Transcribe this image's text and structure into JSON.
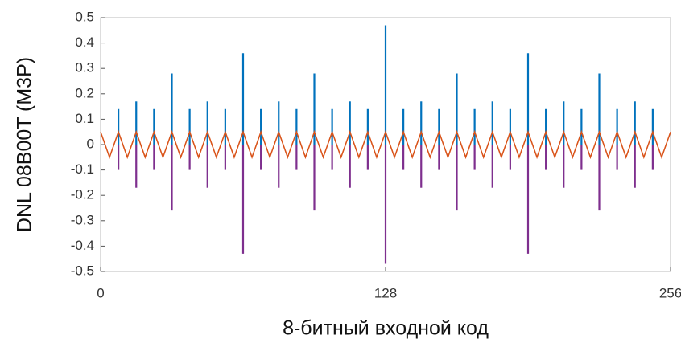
{
  "chart_data": {
    "type": "stem",
    "xlabel": "8-битный входной код",
    "ylabel": "DNL 08B00T (M3P)",
    "xlim": [
      0,
      256
    ],
    "xticks": [
      0,
      128,
      256
    ],
    "ylim": [
      -0.5,
      0.5
    ],
    "yticks": [
      -0.5,
      -0.4,
      -0.3,
      -0.2,
      -0.1,
      0,
      0.1,
      0.2,
      0.3,
      0.4,
      0.5
    ],
    "grid": false,
    "series": [
      {
        "kind": "stem",
        "color": "#0072bd",
        "x": [
          8,
          16,
          24,
          32,
          40,
          48,
          56,
          64,
          72,
          80,
          88,
          96,
          104,
          112,
          120,
          128,
          136,
          144,
          152,
          160,
          168,
          176,
          184,
          192,
          200,
          208,
          216,
          224,
          232,
          240,
          248
        ],
        "values": [
          0.14,
          0.17,
          0.14,
          0.28,
          0.14,
          0.17,
          0.14,
          0.36,
          0.14,
          0.17,
          0.14,
          0.28,
          0.14,
          0.17,
          0.14,
          0.47,
          0.14,
          0.17,
          0.14,
          0.28,
          0.14,
          0.17,
          0.14,
          0.36,
          0.14,
          0.17,
          0.14,
          0.28,
          0.14,
          0.17,
          0.14
        ]
      },
      {
        "kind": "stem",
        "color": "#7e2f8e",
        "x": [
          8,
          16,
          24,
          32,
          40,
          48,
          56,
          64,
          72,
          80,
          88,
          96,
          104,
          112,
          120,
          128,
          136,
          144,
          152,
          160,
          168,
          176,
          184,
          192,
          200,
          208,
          216,
          224,
          232,
          240,
          248
        ],
        "values": [
          -0.1,
          -0.17,
          -0.1,
          -0.26,
          -0.1,
          -0.17,
          -0.1,
          -0.43,
          -0.1,
          -0.17,
          -0.1,
          -0.26,
          -0.1,
          -0.17,
          -0.1,
          -0.47,
          -0.1,
          -0.17,
          -0.1,
          -0.26,
          -0.1,
          -0.17,
          -0.1,
          -0.43,
          -0.1,
          -0.17,
          -0.1,
          -0.26,
          -0.1,
          -0.17,
          -0.1
        ]
      },
      {
        "kind": "line",
        "color": "#d95319",
        "x": [
          0,
          4,
          8,
          12,
          16,
          20,
          24,
          28,
          32,
          36,
          40,
          44,
          48,
          52,
          56,
          60,
          64,
          68,
          72,
          76,
          80,
          84,
          88,
          92,
          96,
          100,
          104,
          108,
          112,
          116,
          120,
          124,
          128,
          132,
          136,
          140,
          144,
          148,
          152,
          156,
          160,
          164,
          168,
          172,
          176,
          180,
          184,
          188,
          192,
          196,
          200,
          204,
          208,
          212,
          216,
          220,
          224,
          228,
          232,
          236,
          240,
          244,
          248,
          252,
          256
        ],
        "values": [
          0.05,
          -0.05,
          0.05,
          -0.05,
          0.05,
          -0.05,
          0.05,
          -0.05,
          0.05,
          -0.05,
          0.05,
          -0.05,
          0.05,
          -0.05,
          0.05,
          -0.05,
          0.05,
          -0.05,
          0.05,
          -0.05,
          0.05,
          -0.05,
          0.05,
          -0.05,
          0.05,
          -0.05,
          0.05,
          -0.05,
          0.05,
          -0.05,
          0.05,
          -0.05,
          0.05,
          -0.05,
          0.05,
          -0.05,
          0.05,
          -0.05,
          0.05,
          -0.05,
          0.05,
          -0.05,
          0.05,
          -0.05,
          0.05,
          -0.05,
          0.05,
          -0.05,
          0.05,
          -0.05,
          0.05,
          -0.05,
          0.05,
          -0.05,
          0.05,
          -0.05,
          0.05,
          -0.05,
          0.05,
          -0.05,
          0.05,
          -0.05,
          0.05,
          -0.05,
          0.05
        ]
      }
    ]
  }
}
